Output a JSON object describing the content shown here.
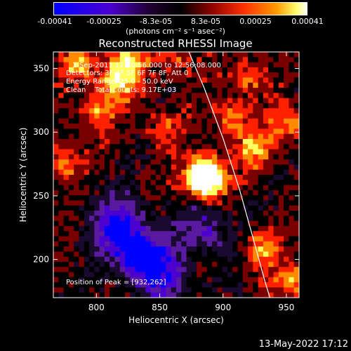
{
  "colorbar": {
    "tick_labels": [
      "-0.00041",
      "-0.00025",
      "-8.3e-05",
      "8.3e-05",
      "0.00025",
      "0.00041"
    ],
    "units": "(photons cm⁻² s⁻¹ asec⁻²)"
  },
  "chart_data": {
    "type": "heatmap",
    "title": "Reconstructed RHESSI Image",
    "xlabel": "Heliocentric X (arcsec)",
    "ylabel": "Heliocentric Y (arcsec)",
    "xlim": [
      766,
      960
    ],
    "ylim": [
      170,
      363
    ],
    "x_ticks": [
      800,
      850,
      900,
      950
    ],
    "y_ticks": [
      200,
      250,
      300,
      350
    ],
    "annotations": [
      "3-Sep-2011 12:50:56.000 to 12:56:08.000",
      "Detectors: 3F 4F 5F 6F 7F 8F, Att 0",
      "Energy Range: 25.0 - 50.0 keV",
      "Clean    Total counts: 9.17E+03"
    ],
    "peak_label": "Position of Peak = [932,262]",
    "peak": [
      932,
      262
    ],
    "value_range": [
      -0.00041,
      0.00041
    ],
    "colormap": [
      "#0000ff",
      "#4b00d0",
      "#5a1aa0",
      "#1a0a30",
      "#000000",
      "#7a0000",
      "#ff2000",
      "#ff8a00",
      "#ffff60",
      "#ffffff"
    ],
    "limb_curve_x": [
      873,
      885,
      900,
      913,
      925,
      933,
      937
    ],
    "limb_curve_y": [
      363,
      335,
      295,
      255,
      212,
      183,
      170
    ]
  },
  "footer_date": "13-May-2022 17:12"
}
